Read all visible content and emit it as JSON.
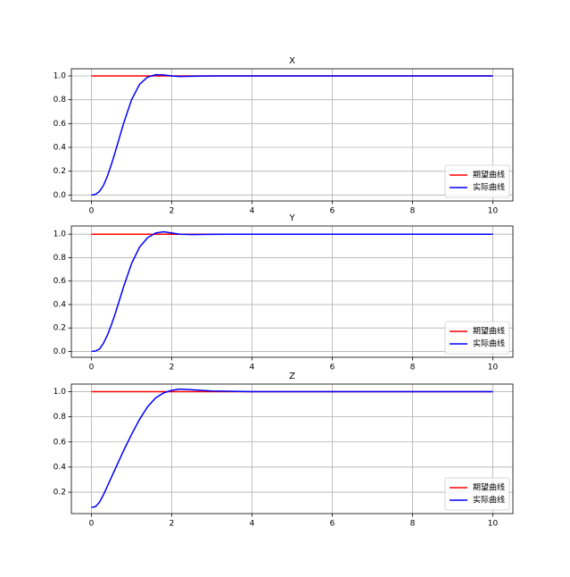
{
  "chart_data": [
    {
      "type": "line",
      "title": "X",
      "x": [
        0,
        0.1,
        0.2,
        0.3,
        0.4,
        0.5,
        0.6,
        0.8,
        1.0,
        1.2,
        1.4,
        1.6,
        1.8,
        2.0,
        2.2,
        2.5,
        3,
        4,
        5,
        6,
        7,
        8,
        9,
        10
      ],
      "series": [
        {
          "name": "期望曲线",
          "color": "#ff0000",
          "values": [
            1,
            1,
            1,
            1,
            1,
            1,
            1,
            1,
            1,
            1,
            1,
            1,
            1,
            1,
            1,
            1,
            1,
            1,
            1,
            1,
            1,
            1,
            1,
            1
          ]
        },
        {
          "name": "实际曲线",
          "color": "#0000ff",
          "values": [
            0,
            0.005,
            0.03,
            0.08,
            0.16,
            0.26,
            0.37,
            0.6,
            0.8,
            0.93,
            0.99,
            1.01,
            1.008,
            1.0,
            0.995,
            0.997,
            1.0,
            1,
            1,
            1,
            1,
            1,
            1,
            1
          ]
        }
      ],
      "xlim": [
        -0.5,
        10.5
      ],
      "ylim": [
        -0.05,
        1.06
      ],
      "xticks": [
        0,
        2,
        4,
        6,
        8,
        10
      ],
      "yticks": [
        {
          "value": 0,
          "label": "0.0"
        },
        0.2,
        0.4,
        0.6,
        0.8,
        {
          "value": 1,
          "label": "1.0"
        }
      ],
      "grid": true,
      "legend": "lower right"
    },
    {
      "type": "line",
      "title": "Y",
      "x": [
        0,
        0.1,
        0.2,
        0.3,
        0.4,
        0.5,
        0.6,
        0.8,
        1.0,
        1.2,
        1.4,
        1.6,
        1.8,
        2.0,
        2.2,
        2.5,
        3,
        4,
        5,
        6,
        7,
        8,
        9,
        10
      ],
      "series": [
        {
          "name": "期望曲线",
          "color": "#ff0000",
          "values": [
            1,
            1,
            1,
            1,
            1,
            1,
            1,
            1,
            1,
            1,
            1,
            1,
            1,
            1,
            1,
            1,
            1,
            1,
            1,
            1,
            1,
            1,
            1,
            1
          ]
        },
        {
          "name": "实际曲线",
          "color": "#0000ff",
          "values": [
            0,
            0.003,
            0.02,
            0.07,
            0.14,
            0.23,
            0.33,
            0.55,
            0.75,
            0.89,
            0.97,
            1.01,
            1.02,
            1.01,
            1.0,
            0.997,
            0.999,
            1,
            1,
            1,
            1,
            1,
            1,
            1
          ]
        }
      ],
      "xlim": [
        -0.5,
        10.5
      ],
      "ylim": [
        -0.05,
        1.07
      ],
      "xticks": [
        0,
        2,
        4,
        6,
        8,
        10
      ],
      "yticks": [
        {
          "value": 0,
          "label": "0.0"
        },
        0.2,
        0.4,
        0.6,
        0.8,
        {
          "value": 1,
          "label": "1.0"
        }
      ],
      "grid": true,
      "legend": "lower right"
    },
    {
      "type": "line",
      "title": "Z",
      "x": [
        0,
        0.1,
        0.2,
        0.3,
        0.4,
        0.5,
        0.6,
        0.8,
        1.0,
        1.2,
        1.4,
        1.6,
        1.8,
        2.0,
        2.2,
        2.5,
        3,
        4,
        5,
        6,
        7,
        8,
        9,
        10
      ],
      "series": [
        {
          "name": "期望曲线",
          "color": "#ff0000",
          "values": [
            1,
            1,
            1,
            1,
            1,
            1,
            1,
            1,
            1,
            1,
            1,
            1,
            1,
            1,
            1,
            1,
            1,
            1,
            1,
            1,
            1,
            1,
            1,
            1
          ]
        },
        {
          "name": "实际曲线",
          "color": "#0000ff",
          "values": [
            0.08,
            0.085,
            0.12,
            0.18,
            0.25,
            0.32,
            0.39,
            0.53,
            0.66,
            0.78,
            0.88,
            0.95,
            0.99,
            1.01,
            1.02,
            1.015,
            1.005,
            1,
            1,
            1,
            1,
            1,
            1,
            1
          ]
        }
      ],
      "xlim": [
        -0.5,
        10.5
      ],
      "ylim": [
        0.03,
        1.06
      ],
      "xticks": [
        0,
        2,
        4,
        6,
        8,
        10
      ],
      "yticks": [
        0.2,
        0.4,
        0.6,
        0.8,
        {
          "value": 1,
          "label": "1.0"
        }
      ],
      "grid": true,
      "legend": "lower right"
    }
  ]
}
